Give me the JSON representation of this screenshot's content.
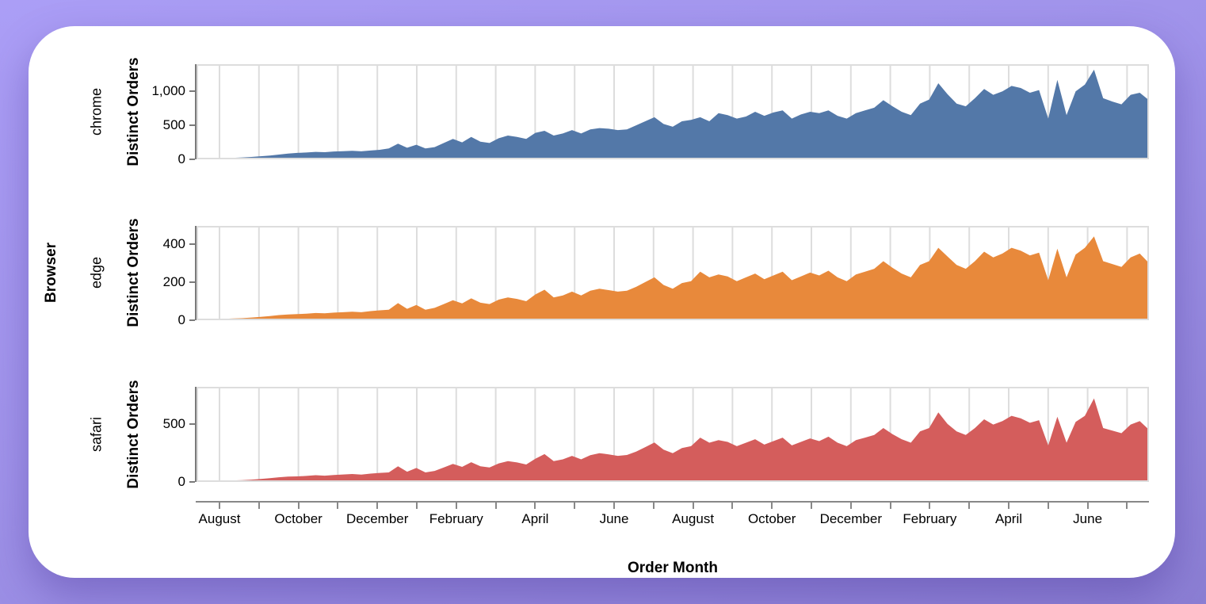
{
  "figure": {
    "outer_y_label": "Browser",
    "x_axis_title": "Order Month",
    "y_axis_title": "Distinct Orders",
    "card_color": "#ffffff",
    "background_colors": [
      "#ab9ef6",
      "#8b7ed3"
    ],
    "gridline_color": "#dddddd",
    "axis_color": "#7a7a7a"
  },
  "x_axis": {
    "title": "Order Month",
    "months_spanned": 24,
    "label_every_n_months": 2,
    "tick_labels": [
      "August",
      "October",
      "December",
      "February",
      "April",
      "June",
      "August",
      "October",
      "December",
      "February",
      "April",
      "June"
    ]
  },
  "chart_data": [
    {
      "type": "area",
      "facet": "chrome",
      "color": "#5378a8",
      "xlabel": "Order Month",
      "ylabel": "Distinct Orders",
      "ylim": [
        0,
        1400
      ],
      "y_ticks": [
        {
          "v": 0,
          "label": "0"
        },
        {
          "v": 500,
          "label": "500"
        },
        {
          "v": 1000,
          "label": "1,000"
        }
      ],
      "x_unit": "week",
      "values": [
        10,
        12,
        15,
        18,
        22,
        28,
        35,
        45,
        55,
        70,
        85,
        95,
        100,
        110,
        105,
        115,
        120,
        125,
        118,
        130,
        140,
        160,
        230,
        170,
        215,
        160,
        180,
        240,
        300,
        250,
        330,
        260,
        240,
        310,
        350,
        330,
        300,
        390,
        420,
        350,
        380,
        430,
        380,
        440,
        460,
        450,
        430,
        440,
        500,
        560,
        620,
        520,
        480,
        560,
        580,
        620,
        560,
        680,
        650,
        600,
        630,
        700,
        640,
        690,
        720,
        600,
        660,
        700,
        680,
        720,
        640,
        600,
        680,
        720,
        760,
        870,
        780,
        700,
        650,
        820,
        880,
        1120,
        960,
        820,
        780,
        900,
        1035,
        950,
        1000,
        1080,
        1050,
        980,
        1020,
        600,
        1170,
        650,
        1000,
        1100,
        1320,
        900,
        850,
        810,
        950,
        980,
        870
      ]
    },
    {
      "type": "area",
      "facet": "edge",
      "color": "#e8893b",
      "xlabel": "Order Month",
      "ylabel": "Distinct Orders",
      "ylim": [
        0,
        495
      ],
      "y_ticks": [
        {
          "v": 0,
          "label": "0"
        },
        {
          "v": 200,
          "label": "200"
        },
        {
          "v": 400,
          "label": "400"
        }
      ],
      "x_unit": "week",
      "values": [
        3,
        4,
        5,
        7,
        9,
        11,
        14,
        18,
        22,
        27,
        30,
        32,
        34,
        38,
        36,
        40,
        42,
        45,
        42,
        48,
        52,
        55,
        90,
        60,
        80,
        55,
        65,
        85,
        105,
        88,
        115,
        92,
        85,
        108,
        120,
        112,
        100,
        135,
        160,
        120,
        130,
        150,
        130,
        155,
        165,
        158,
        150,
        155,
        175,
        200,
        225,
        185,
        165,
        195,
        205,
        255,
        225,
        240,
        230,
        205,
        225,
        245,
        215,
        235,
        255,
        210,
        230,
        250,
        235,
        260,
        225,
        205,
        240,
        255,
        270,
        310,
        275,
        245,
        225,
        290,
        310,
        380,
        335,
        290,
        270,
        310,
        360,
        330,
        350,
        380,
        365,
        340,
        355,
        210,
        375,
        225,
        345,
        380,
        440,
        310,
        295,
        280,
        330,
        350,
        300
      ]
    },
    {
      "type": "area",
      "facet": "safari",
      "color": "#d45d5c",
      "xlabel": "Order Month",
      "ylabel": "Distinct Orders",
      "ylim": [
        0,
        820
      ],
      "y_ticks": [
        {
          "v": 0,
          "label": "0"
        },
        {
          "v": 500,
          "label": "500"
        }
      ],
      "x_unit": "week",
      "values": [
        5,
        6,
        8,
        10,
        13,
        16,
        20,
        26,
        32,
        40,
        46,
        48,
        52,
        58,
        54,
        60,
        64,
        68,
        63,
        72,
        78,
        82,
        135,
        88,
        120,
        82,
        95,
        125,
        155,
        130,
        170,
        135,
        125,
        160,
        180,
        168,
        150,
        200,
        240,
        180,
        195,
        225,
        195,
        230,
        248,
        238,
        225,
        232,
        262,
        300,
        340,
        278,
        248,
        292,
        308,
        382,
        338,
        360,
        345,
        308,
        338,
        368,
        322,
        352,
        382,
        315,
        345,
        375,
        352,
        390,
        338,
        308,
        360,
        382,
        405,
        465,
        412,
        368,
        338,
        435,
        465,
        600,
        500,
        435,
        405,
        465,
        540,
        495,
        525,
        570,
        548,
        510,
        532,
        315,
        562,
        338,
        518,
        570,
        720,
        465,
        442,
        420,
        495,
        525,
        450
      ]
    }
  ]
}
